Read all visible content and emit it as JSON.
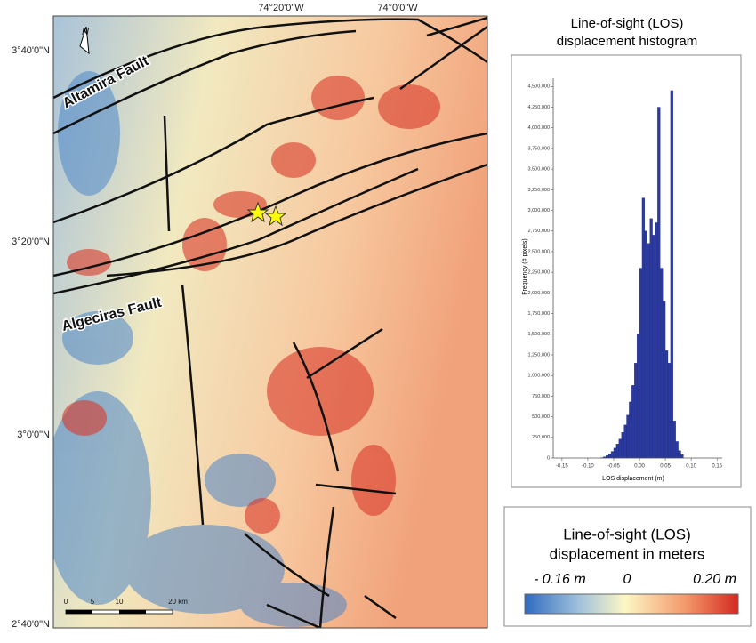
{
  "map": {
    "lat_labels": [
      "3°40'0\"N",
      "3°20'0\"N",
      "3°0'0\"N",
      "2°40'0\"N"
    ],
    "lon_labels": [
      "74°20'0\"W",
      "74°0'0\"W"
    ],
    "faults": [
      "Altamira Fault",
      "Algeciras Fault"
    ],
    "north": "N",
    "scale_labels": [
      "0",
      "5",
      "10",
      "20 km"
    ]
  },
  "chart_data": {
    "type": "histogram",
    "title": [
      "Line-of-sight (LOS)",
      "displacement histogram"
    ],
    "x_label": "LOS displacement (m)",
    "y_label": "Frequency (# pixels)",
    "color": "#2b3aa0",
    "bins": [
      -0.075,
      -0.07,
      -0.065,
      -0.06,
      -0.055,
      -0.05,
      -0.045,
      -0.04,
      -0.035,
      -0.03,
      -0.025,
      -0.02,
      -0.015,
      -0.01,
      -0.005,
      0.0,
      0.005,
      0.01,
      0.015,
      0.02,
      0.025,
      0.03,
      0.035,
      0.04,
      0.045,
      0.05,
      0.055,
      0.06,
      0.065,
      0.07,
      0.075,
      0.08,
      0.085
    ],
    "values": [
      5000,
      15000,
      30000,
      50000,
      80000,
      120000,
      170000,
      230000,
      310000,
      400000,
      520000,
      680000,
      880000,
      1150000,
      1500000,
      2300000,
      3150000,
      2750000,
      2600000,
      2900000,
      2700000,
      2850000,
      4250000,
      2300000,
      1900000,
      1300000,
      1150000,
      4450000,
      450000,
      200000,
      90000,
      40000
    ],
    "xlim": [
      -0.167,
      0.16
    ],
    "ylim": [
      0,
      4600000
    ],
    "xticks": [
      -0.15,
      {
        "value": -0.1,
        "label": "-0.10"
      },
      -0.05,
      {
        "value": 0,
        "label": "0.00"
      },
      0.05,
      {
        "value": 0.1,
        "label": "0.10"
      },
      0.15
    ],
    "yticks": [
      0,
      {
        "value": 250000,
        "label": "250,000"
      },
      {
        "value": 500000,
        "label": "500,000"
      },
      {
        "value": 750000,
        "label": "750,000"
      },
      {
        "value": 1000000,
        "label": "1,000,000"
      },
      {
        "value": 1250000,
        "label": "1,250,000"
      },
      {
        "value": 1500000,
        "label": "1,500,000"
      },
      {
        "value": 1750000,
        "label": "1,750,000"
      },
      {
        "value": 2000000,
        "label": "2,000,000"
      },
      {
        "value": 2250000,
        "label": "2,250,000"
      },
      {
        "value": 2500000,
        "label": "2,500,000"
      },
      {
        "value": 2750000,
        "label": "2,750,000"
      },
      {
        "value": 3000000,
        "label": "3,000,000"
      },
      {
        "value": 3250000,
        "label": "3,250,000"
      },
      {
        "value": 3500000,
        "label": "3,500,000"
      },
      {
        "value": 3750000,
        "label": "3,750,000"
      },
      {
        "value": 4000000,
        "label": "4,000,000"
      },
      {
        "value": 4250000,
        "label": "4,250,000"
      },
      {
        "value": 4500000,
        "label": "4,500,000"
      }
    ]
  },
  "legend": {
    "title": [
      "Line-of-sight (LOS)",
      "displacement in meters"
    ],
    "min_label": "- 0.16 m",
    "mid_label": "0",
    "max_label": "0.20 m"
  }
}
